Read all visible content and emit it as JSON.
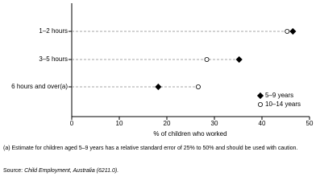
{
  "chart_data": {
    "type": "dot",
    "categories": [
      "1–2 hours",
      "3–5 hours",
      "6 hours and over(a)"
    ],
    "series": [
      {
        "name": "5–9 years",
        "color": "#000000",
        "marker": "diamond",
        "values": [
          46.5,
          35.2,
          18.2
        ]
      },
      {
        "name": "10–14 years",
        "color": "#ffffff",
        "marker": "circle",
        "values": [
          45.3,
          28.4,
          26.6
        ]
      }
    ],
    "xlabel": "% of children who worked",
    "xlim": [
      0,
      50
    ],
    "xticks": [
      0,
      10,
      20,
      30,
      40,
      50
    ],
    "legend": "lower right",
    "footnote": "(a) Estimate for children aged 5–9 years has a relative standard error of 25% to 50% and should be used with caution.",
    "source_prefix": "Source:",
    "source": "Child Employment, Australia (6211.0)."
  }
}
